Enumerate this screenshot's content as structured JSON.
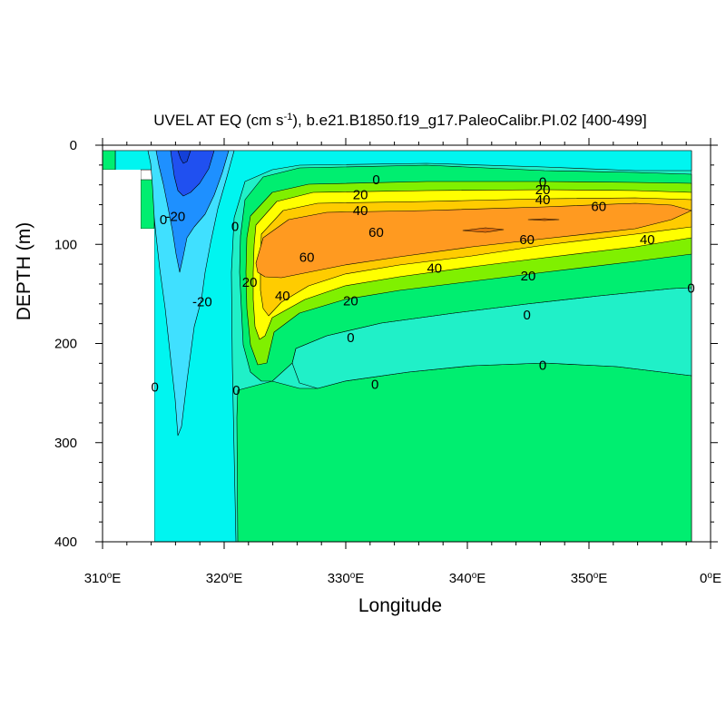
{
  "chart_data": {
    "type": "contour",
    "title_main": "UVEL AT EQ (cm s",
    "title_sup": "-1",
    "title_rest": "), b.e21.B1850.f19_g17.PaleoCalibr.PI.02 [400-499]",
    "xlabel": "Longitude",
    "ylabel": "DEPTH (m)",
    "xlim": [
      310,
      360
    ],
    "ylim": [
      400,
      0
    ],
    "x_ticks": [
      {
        "value": 310,
        "deg": "310",
        "hemi": "E"
      },
      {
        "value": 320,
        "deg": "320",
        "hemi": "E"
      },
      {
        "value": 330,
        "deg": "330",
        "hemi": "E"
      },
      {
        "value": 340,
        "deg": "340",
        "hemi": "E"
      },
      {
        "value": 350,
        "deg": "350",
        "hemi": "E"
      },
      {
        "value": 360,
        "deg": "0",
        "hemi": "E"
      }
    ],
    "y_ticks": [
      {
        "value": 0,
        "label": "0"
      },
      {
        "value": 100,
        "label": "100"
      },
      {
        "value": 200,
        "label": "200"
      },
      {
        "value": 300,
        "label": "300"
      },
      {
        "value": 400,
        "label": "400"
      }
    ],
    "contour_interval": 10,
    "fill_colors": {
      "below_-30": "#2050f0",
      "-30_to_-20": "#1e90ff",
      "-20_to_-10": "#40e0ff",
      "-10_to_0": "#00f5f0",
      "0_to_10": "#20f0c8",
      "10_to_20": "#00ee70",
      "20_to_30": "#80f000",
      "30_to_40": "#ffff00",
      "40_to_50": "#ffcc00",
      "50_to_60": "#ff9a20",
      "above_60": "#e07010"
    },
    "jet_core": {
      "longitude": 342,
      "depth_m": 80,
      "max_value_above": 60
    },
    "contour_labels": [
      {
        "text": "0",
        "lon": 332.5,
        "depth": 35
      },
      {
        "text": "0",
        "lon": 346.2,
        "depth": 37
      },
      {
        "text": "20",
        "lon": 331.2,
        "depth": 50
      },
      {
        "text": "20",
        "lon": 346.2,
        "depth": 45
      },
      {
        "text": "40",
        "lon": 331.2,
        "depth": 66
      },
      {
        "text": "40",
        "lon": 346.2,
        "depth": 55
      },
      {
        "text": "60",
        "lon": 332.5,
        "depth": 88
      },
      {
        "text": "60",
        "lon": 344.9,
        "depth": 95
      },
      {
        "text": "60",
        "lon": 350.8,
        "depth": 62
      },
      {
        "text": "40",
        "lon": 354.8,
        "depth": 95
      },
      {
        "text": "60",
        "lon": 326.8,
        "depth": 113
      },
      {
        "text": "40",
        "lon": 337.3,
        "depth": 124
      },
      {
        "text": "20",
        "lon": 345.0,
        "depth": 132
      },
      {
        "text": "40",
        "lon": 324.8,
        "depth": 152
      },
      {
        "text": "20",
        "lon": 330.4,
        "depth": 157
      },
      {
        "text": "20",
        "lon": 322.1,
        "depth": 138
      },
      {
        "text": "0",
        "lon": 320.9,
        "depth": 82
      },
      {
        "text": "-20",
        "lon": 316.0,
        "depth": 72
      },
      {
        "text": "0",
        "lon": 315.0,
        "depth": 75
      },
      {
        "text": "-20",
        "lon": 318.2,
        "depth": 158
      },
      {
        "text": "0",
        "lon": 330.4,
        "depth": 194
      },
      {
        "text": "0",
        "lon": 344.9,
        "depth": 171
      },
      {
        "text": "0",
        "lon": 358.4,
        "depth": 144
      },
      {
        "text": "0",
        "lon": 332.4,
        "depth": 241
      },
      {
        "text": "0",
        "lon": 346.2,
        "depth": 222
      },
      {
        "text": "0",
        "lon": 314.3,
        "depth": 244
      },
      {
        "text": "0",
        "lon": 321.0,
        "depth": 247
      }
    ]
  }
}
